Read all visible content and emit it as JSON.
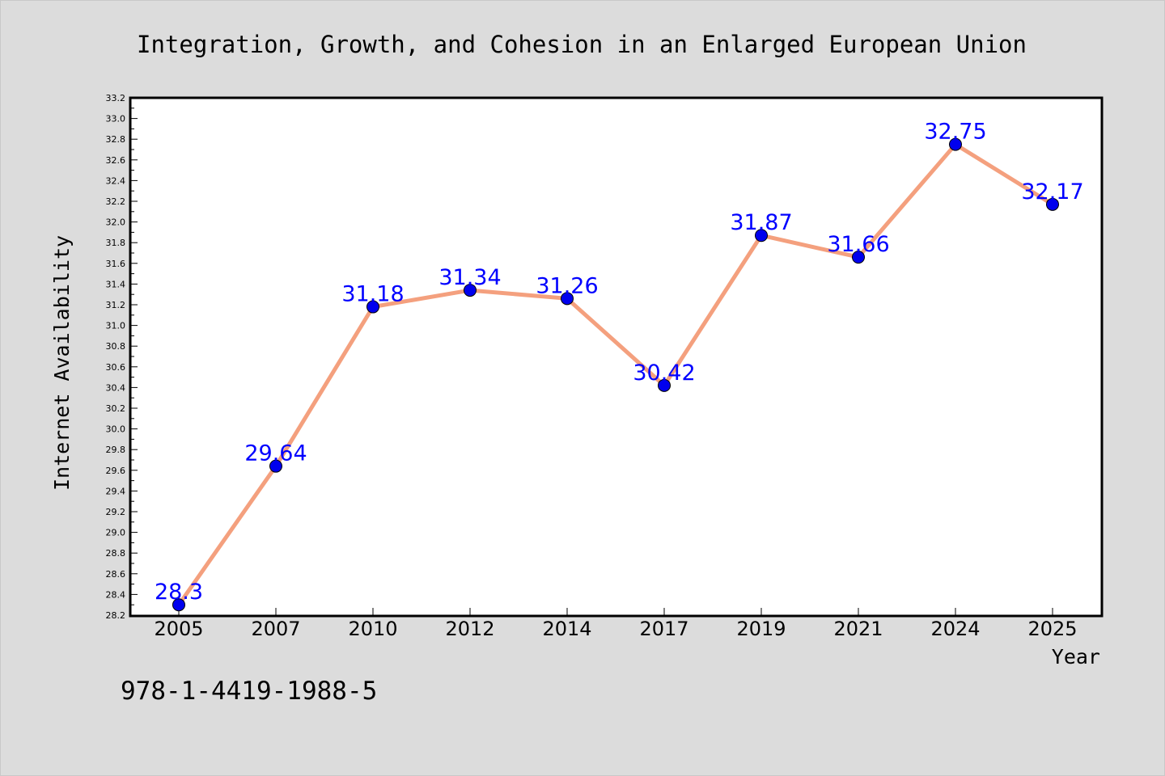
{
  "chart_data": {
    "type": "line",
    "title": "Integration, Growth, and Cohesion in an Enlarged European Union",
    "xlabel": "Year",
    "ylabel": "Internet Availability",
    "categories": [
      "2005",
      "2007",
      "2010",
      "2012",
      "2014",
      "2017",
      "2019",
      "2021",
      "2024",
      "2025"
    ],
    "series": [
      {
        "values": [
          28.3,
          29.64,
          31.18,
          31.34,
          31.26,
          30.42,
          31.87,
          31.66,
          32.75,
          32.17
        ],
        "data_labels": [
          "28.3",
          "29.64",
          "31.18",
          "31.34",
          "31.26",
          "30.42",
          "31.87",
          "31.66",
          "32.75",
          "32.17"
        ]
      }
    ],
    "ylim": [
      28.2,
      33.2
    ],
    "y_ticks": [
      "28.2",
      "28.4",
      "28.6",
      "28.8",
      "29.0",
      "29.2",
      "29.4",
      "29.6",
      "29.8",
      "30.0",
      "30.2",
      "30.4",
      "30.6",
      "30.8",
      "31.0",
      "31.2",
      "31.4",
      "31.6",
      "31.8",
      "32.0",
      "32.2",
      "32.4",
      "32.6",
      "32.8",
      "33.0",
      "33.2"
    ],
    "grid": false,
    "legend": "none",
    "colors": {
      "line": "#f4a07e",
      "marker": "#0000ee",
      "data_label": "#0000ff",
      "background": "#dcdcdc",
      "plot_area": "#ffffff"
    }
  },
  "footer": {
    "code": "978-1-4419-1988-5"
  }
}
